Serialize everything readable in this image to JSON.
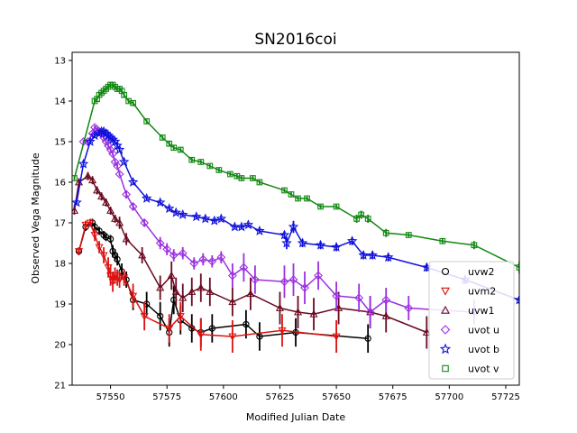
{
  "chart_data": {
    "type": "line",
    "title": "SN2016coi",
    "xlabel": "Modified Julian Date",
    "ylabel": "Observed Vega Magnitude",
    "xlim": [
      57533,
      57731
    ],
    "ylim": [
      21,
      12.8
    ],
    "y_inverted": true,
    "xticks": [
      57550,
      57575,
      57600,
      57625,
      57650,
      57675,
      57700,
      57725
    ],
    "yticks": [
      13,
      14,
      15,
      16,
      17,
      18,
      19,
      20,
      21
    ],
    "grid": false,
    "legend_position": "lower-right",
    "series": [
      {
        "name": "uvw2",
        "marker": "circle",
        "color": "#000000",
        "x": [
          57536,
          57539,
          57542,
          57543,
          57545,
          57547,
          57548,
          57550,
          57551,
          57552,
          57553,
          57555,
          57557,
          57560,
          57566,
          57572,
          57576,
          57578,
          57581,
          57586,
          57590,
          57595,
          57610,
          57616,
          57632,
          57664
        ],
        "y": [
          17.7,
          17.1,
          17.0,
          17.1,
          17.2,
          17.3,
          17.35,
          17.4,
          17.7,
          17.8,
          17.9,
          18.2,
          18.4,
          18.9,
          19.0,
          19.3,
          19.7,
          18.9,
          19.4,
          19.6,
          19.7,
          19.6,
          19.5,
          19.8,
          19.7,
          19.85
        ],
        "err": [
          0.1,
          0.1,
          0.1,
          0.1,
          0.1,
          0.1,
          0.1,
          0.1,
          0.15,
          0.15,
          0.15,
          0.2,
          0.2,
          0.25,
          0.3,
          0.35,
          0.35,
          0.35,
          0.35,
          0.35,
          0.35,
          0.35,
          0.35,
          0.35,
          0.35,
          0.35
        ]
      },
      {
        "name": "uvm2",
        "marker": "triangle-down",
        "color": "#dd1111",
        "x": [
          57536,
          57539,
          57541,
          57543,
          57545,
          57547,
          57549,
          57550,
          57551,
          57552,
          57553,
          57554,
          57556,
          57560,
          57565,
          57576,
          57581,
          57590,
          57604,
          57626,
          57650
        ],
        "y": [
          17.7,
          17.05,
          17.0,
          17.3,
          17.6,
          17.8,
          18.1,
          18.3,
          18.45,
          18.3,
          18.35,
          18.4,
          18.35,
          18.8,
          19.3,
          19.6,
          19.3,
          19.75,
          19.8,
          19.65,
          19.8
        ],
        "err": [
          0.1,
          0.1,
          0.1,
          0.15,
          0.15,
          0.2,
          0.25,
          0.25,
          0.25,
          0.2,
          0.2,
          0.2,
          0.2,
          0.3,
          0.35,
          0.35,
          0.35,
          0.4,
          0.4,
          0.4,
          0.4
        ]
      },
      {
        "name": "uvw1",
        "marker": "triangle-up",
        "color": "#6a0a20",
        "x": [
          57534,
          57536,
          57540,
          57542,
          57544,
          57546,
          57548,
          57550,
          57552,
          57554,
          57557,
          57564,
          57572,
          57577,
          57579,
          57582,
          57586,
          57590,
          57594,
          57604,
          57612,
          57625,
          57633,
          57640,
          57651,
          57665,
          57672,
          57690
        ],
        "y": [
          16.7,
          16.0,
          15.85,
          15.95,
          16.2,
          16.35,
          16.5,
          16.7,
          16.9,
          17.0,
          17.4,
          17.8,
          18.6,
          18.3,
          18.7,
          18.85,
          18.7,
          18.6,
          18.7,
          18.95,
          18.75,
          19.1,
          19.2,
          19.25,
          19.1,
          19.2,
          19.3,
          19.7
        ],
        "err": [
          0.1,
          0.1,
          0.1,
          0.1,
          0.1,
          0.1,
          0.1,
          0.1,
          0.1,
          0.15,
          0.15,
          0.2,
          0.3,
          0.35,
          0.35,
          0.35,
          0.35,
          0.35,
          0.35,
          0.35,
          0.4,
          0.4,
          0.4,
          0.4,
          0.4,
          0.4,
          0.4,
          0.4
        ]
      },
      {
        "name": "uvot u",
        "marker": "diamond",
        "color": "#9b30e0",
        "x": [
          57538,
          57540,
          57542,
          57543,
          57544,
          57545,
          57546,
          57547,
          57548,
          57549,
          57550,
          57551,
          57552,
          57553,
          57554,
          57557,
          57560,
          57565,
          57572,
          57575,
          57578,
          57582,
          57587,
          57591,
          57595,
          57599,
          57604,
          57609,
          57614,
          57627,
          57631,
          57636,
          57642,
          57650,
          57660,
          57665,
          57672,
          57682,
          57711
        ],
        "y": [
          15.0,
          15.0,
          14.8,
          14.65,
          14.7,
          14.75,
          14.8,
          14.9,
          15.0,
          15.1,
          15.2,
          15.3,
          15.5,
          15.6,
          15.8,
          16.3,
          16.6,
          17.0,
          17.5,
          17.65,
          17.8,
          17.75,
          18.0,
          17.9,
          17.95,
          17.85,
          18.3,
          18.1,
          18.4,
          18.45,
          18.4,
          18.6,
          18.3,
          18.8,
          18.85,
          19.2,
          18.9,
          19.1,
          19.2
        ],
        "err": [
          0.05,
          0.05,
          0.05,
          0.05,
          0.05,
          0.05,
          0.05,
          0.05,
          0.05,
          0.05,
          0.05,
          0.05,
          0.05,
          0.05,
          0.05,
          0.1,
          0.1,
          0.1,
          0.15,
          0.15,
          0.15,
          0.15,
          0.15,
          0.15,
          0.15,
          0.15,
          0.3,
          0.35,
          0.35,
          0.4,
          0.4,
          0.4,
          0.35,
          0.35,
          0.35,
          0.4,
          0.3,
          0.3,
          0.3
        ]
      },
      {
        "name": "uvot b",
        "marker": "star",
        "color": "#1010dd",
        "x": [
          57535,
          57538,
          57541,
          57543,
          57545,
          57546,
          57547,
          57548,
          57549,
          57550,
          57551,
          57552,
          57553,
          57554,
          57556,
          57560,
          57566,
          57572,
          57576,
          57579,
          57582,
          57588,
          57592,
          57596,
          57599,
          57605,
          57608,
          57611,
          57616,
          57627,
          57628,
          57631,
          57635,
          57643,
          57650,
          57657,
          57662,
          57666,
          57673,
          57690,
          57707,
          57731
        ],
        "y": [
          16.5,
          15.55,
          15.0,
          14.85,
          14.8,
          14.75,
          14.75,
          14.8,
          14.85,
          14.9,
          14.95,
          15.0,
          15.1,
          15.2,
          15.5,
          16.0,
          16.4,
          16.5,
          16.65,
          16.75,
          16.8,
          16.85,
          16.9,
          16.95,
          16.9,
          17.1,
          17.1,
          17.05,
          17.2,
          17.3,
          17.5,
          17.1,
          17.5,
          17.55,
          17.6,
          17.45,
          17.8,
          17.8,
          17.85,
          18.1,
          18.4,
          18.9
        ],
        "err": [
          0.05,
          0.05,
          0.05,
          0.05,
          0.05,
          0.05,
          0.05,
          0.05,
          0.05,
          0.05,
          0.05,
          0.05,
          0.05,
          0.05,
          0.05,
          0.05,
          0.05,
          0.05,
          0.05,
          0.05,
          0.05,
          0.05,
          0.05,
          0.05,
          0.05,
          0.05,
          0.05,
          0.05,
          0.05,
          0.1,
          0.15,
          0.15,
          0.1,
          0.1,
          0.1,
          0.1,
          0.1,
          0.1,
          0.1,
          0.1,
          0.1,
          0.1
        ]
      },
      {
        "name": "uvot v",
        "marker": "square",
        "color": "#118811",
        "x": [
          57534,
          57543,
          57544,
          57545,
          57546,
          57547,
          57548,
          57549,
          57550,
          57551,
          57552,
          57553,
          57554,
          57555,
          57556,
          57558,
          57560,
          57566,
          57573,
          57576,
          57578,
          57581,
          57586,
          57590,
          57594,
          57598,
          57603,
          57606,
          57608,
          57613,
          57616,
          57627,
          57630,
          57633,
          57637,
          57643,
          57650,
          57659,
          57661,
          57664,
          57672,
          57682,
          57697,
          57711,
          57731
        ],
        "y": [
          15.9,
          14.0,
          13.95,
          13.85,
          13.8,
          13.75,
          13.7,
          13.65,
          13.6,
          13.6,
          13.65,
          13.7,
          13.7,
          13.75,
          13.85,
          14.0,
          14.05,
          14.5,
          14.9,
          15.05,
          15.15,
          15.2,
          15.45,
          15.5,
          15.6,
          15.7,
          15.8,
          15.85,
          15.9,
          15.9,
          16.0,
          16.2,
          16.3,
          16.4,
          16.4,
          16.6,
          16.6,
          16.9,
          16.8,
          16.9,
          17.25,
          17.3,
          17.45,
          17.55,
          18.1
        ],
        "err": [
          0.05,
          0.05,
          0.05,
          0.05,
          0.05,
          0.05,
          0.05,
          0.05,
          0.05,
          0.05,
          0.05,
          0.05,
          0.05,
          0.05,
          0.05,
          0.05,
          0.05,
          0.05,
          0.05,
          0.05,
          0.05,
          0.05,
          0.05,
          0.05,
          0.05,
          0.05,
          0.05,
          0.05,
          0.05,
          0.05,
          0.05,
          0.05,
          0.05,
          0.05,
          0.05,
          0.05,
          0.05,
          0.1,
          0.1,
          0.1,
          0.1,
          0.05,
          0.05,
          0.1,
          0.15
        ]
      }
    ]
  }
}
